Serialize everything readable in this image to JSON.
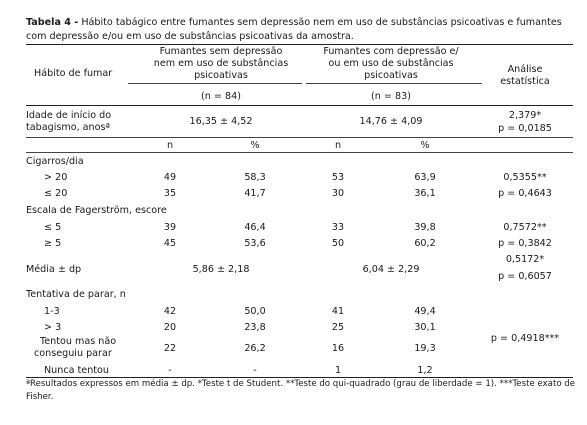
{
  "caption": {
    "label": "Tabela 4 -",
    "text": " Hábito tabágico entre fumantes sem depressão nem em uso de substâncias psicoativas e fumantes com depressão e/ou em uso de substâncias psicoativas da amostra."
  },
  "header": {
    "col1": "Hábito de fumar",
    "group1": [
      "Fumantes sem depressão",
      "nem em uso de substâncias",
      "psicoativas"
    ],
    "group1_n": "(n = 84)",
    "group2": [
      "Fumantes com depressão e/",
      "ou em uso de substâncias",
      "psicoativas"
    ],
    "group2_n": "(n = 83)",
    "stat": [
      "Análise",
      "estatística"
    ]
  },
  "onset": {
    "label": [
      "Idade de início do",
      "tabagismo, anosª"
    ],
    "g1": "16,35 ± 4,52",
    "g2": "14,76 ± 4,09",
    "stat": [
      "2,379*",
      "p = 0,0185"
    ]
  },
  "subheader": {
    "n": "n",
    "pct": "%"
  },
  "cigarettes": {
    "title": "Cigarros/dia",
    "rows": [
      {
        "label": "> 20",
        "n1": "49",
        "p1": "58,3",
        "n2": "53",
        "p2": "63,9",
        "stat": "0,5355**"
      },
      {
        "label": "≤ 20",
        "n1": "35",
        "p1": "41,7",
        "n2": "30",
        "p2": "36,1",
        "stat": "p = 0,4643"
      }
    ]
  },
  "fagerstrom": {
    "title": "Escala de Fagerström, escore",
    "rows": [
      {
        "label": "≤ 5",
        "n1": "39",
        "p1": "46,4",
        "n2": "33",
        "p2": "39,8",
        "stat": "0,7572**"
      },
      {
        "label": "≥ 5",
        "n1": "45",
        "p1": "53,6",
        "n2": "50",
        "p2": "60,2",
        "stat": "p = 0,3842"
      }
    ]
  },
  "mean": {
    "label": "Média ± dp",
    "g1": "5,86 ± 2,18",
    "g2": "6,04 ± 2,29",
    "stat": [
      "0,5172*",
      "p = 0,6057"
    ]
  },
  "quit": {
    "title": "Tentativa de parar, n",
    "rows": [
      {
        "label": [
          "1-3"
        ],
        "n1": "42",
        "p1": "50,0",
        "n2": "41",
        "p2": "49,4"
      },
      {
        "label": [
          "> 3"
        ],
        "n1": "20",
        "p1": "23,8",
        "n2": "25",
        "p2": "30,1"
      },
      {
        "label": [
          "Tentou mas não",
          "conseguiu parar"
        ],
        "n1": "22",
        "p1": "26,2",
        "n2": "16",
        "p2": "19,3"
      },
      {
        "label": [
          "Nunca tentou"
        ],
        "n1": "-",
        "p1": "-",
        "n2": "1",
        "p2": "1,2"
      }
    ],
    "stat": "p = 0,4918***"
  },
  "footnote": "ªResultados expressos em média ± dp. *Teste t de Student. **Teste do qui-quadrado (grau de liberdade = 1). ***Teste exato de Fisher."
}
